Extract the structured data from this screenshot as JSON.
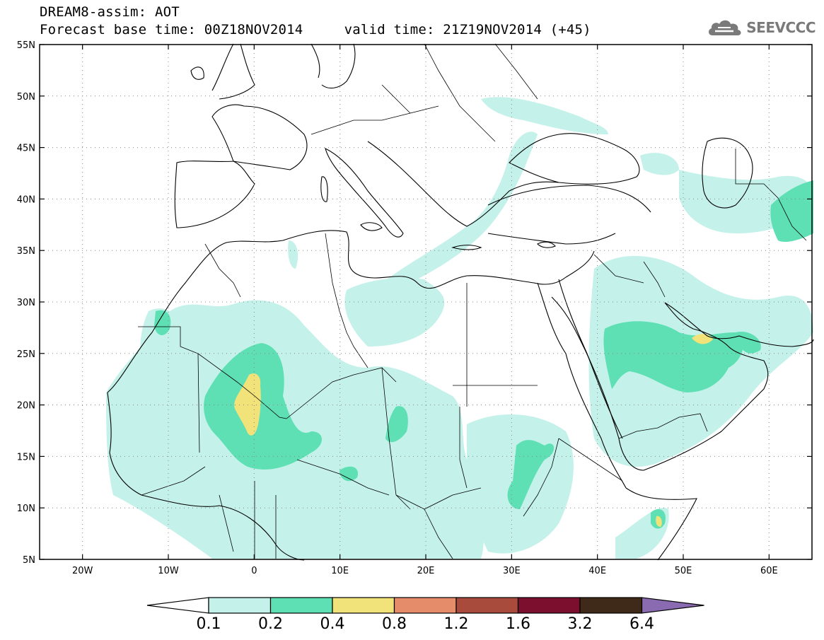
{
  "header": {
    "line1": "DREAM8-assim: AOT",
    "line2": "Forecast base time: 00Z18NOV2014     valid time: 21Z19NOV2014 (+45)",
    "logo_text": "SEEVCCC",
    "logo_icon": "cloud-icon"
  },
  "map": {
    "lon_range": [
      -25,
      65
    ],
    "lat_range": [
      5,
      55
    ],
    "lon_ticks": [
      {
        "value": -20,
        "label": "20W"
      },
      {
        "value": -10,
        "label": "10W"
      },
      {
        "value": 0,
        "label": "0"
      },
      {
        "value": 10,
        "label": "10E"
      },
      {
        "value": 20,
        "label": "20E"
      },
      {
        "value": 30,
        "label": "30E"
      },
      {
        "value": 40,
        "label": "40E"
      },
      {
        "value": 50,
        "label": "50E"
      },
      {
        "value": 60,
        "label": "60E"
      }
    ],
    "lat_ticks": [
      {
        "value": 5,
        "label": "5N"
      },
      {
        "value": 10,
        "label": "10N"
      },
      {
        "value": 15,
        "label": "15N"
      },
      {
        "value": 20,
        "label": "20N"
      },
      {
        "value": 25,
        "label": "25N"
      },
      {
        "value": 30,
        "label": "30N"
      },
      {
        "value": 35,
        "label": "35N"
      },
      {
        "value": 40,
        "label": "40N"
      },
      {
        "value": 45,
        "label": "45N"
      },
      {
        "value": 50,
        "label": "50N"
      },
      {
        "value": 55,
        "label": "55N"
      }
    ],
    "grid": "dotted"
  },
  "colorbar": {
    "colors": [
      "#c4f2ea",
      "#5ee0b4",
      "#f2e27a",
      "#e58c6a",
      "#a84b3c",
      "#7d0f2e",
      "#3f2a1a",
      "#8a6ab0"
    ],
    "labels": [
      "0.1",
      "0.2",
      "0.4",
      "0.8",
      "1.2",
      "1.6",
      "3.2",
      "6.4"
    ]
  }
}
